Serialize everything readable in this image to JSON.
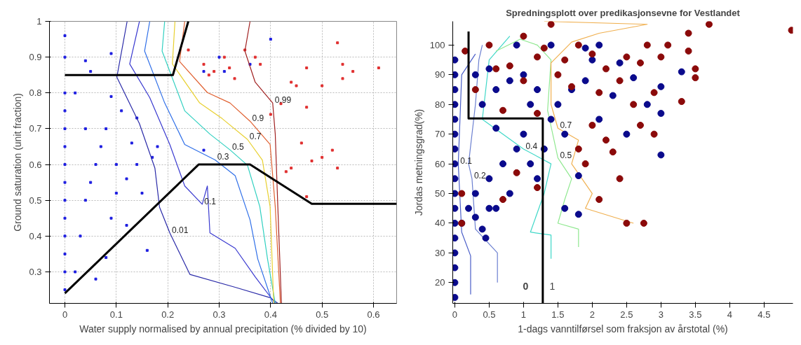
{
  "chart_data": [
    {
      "type": "scatter",
      "xlabel": "Water supply normalised by annual precipitation (% divided by 10)",
      "ylabel": "Ground saturation (unit fraction)",
      "xlim": [
        -0.03,
        0.645
      ],
      "ylim": [
        0.212,
        1
      ],
      "xticks": [
        0,
        0.1,
        0.2,
        0.3,
        0.4,
        0.5,
        0.6
      ],
      "yticks": [
        0.3,
        0.4,
        0.5,
        0.6,
        0.7,
        0.8,
        0.9,
        1
      ],
      "grid": true,
      "series": [
        {
          "marker": "square",
          "color": "#1f1fe0",
          "x": [
            0,
            0,
            0,
            0,
            0,
            0,
            0,
            0,
            0,
            0,
            0,
            0,
            0,
            0,
            0.02,
            0.03,
            0.04,
            0.05,
            0.06,
            0.04,
            0.02,
            0.05,
            0.08,
            0.09,
            0.1,
            0.1,
            0.08,
            0.11,
            0.12,
            0.13,
            0.14,
            0.15,
            0.16,
            0.12,
            0.14,
            0.17,
            0.18,
            0.06,
            0.04,
            0.09,
            0.27,
            0.3,
            0.31,
            0.36,
            0.4,
            0.27,
            0.09,
            0.07
          ],
          "values": [
            0.25,
            0.3,
            0.35,
            0.4,
            0.45,
            0.5,
            0.55,
            0.6,
            0.65,
            0.7,
            0.75,
            0.8,
            0.9,
            0.96,
            0.3,
            0.4,
            0.5,
            0.55,
            0.6,
            0.7,
            0.8,
            0.86,
            0.34,
            0.45,
            0.52,
            0.6,
            0.7,
            0.75,
            0.56,
            0.66,
            0.6,
            0.52,
            0.36,
            0.43,
            0.73,
            0.62,
            0.65,
            0.28,
            0.89,
            0.91,
            0.86,
            0.9,
            0.86,
            0.88,
            0.95,
            0.64,
            0.79,
            0.65
          ]
        },
        {
          "marker": "square",
          "color": "#e03030",
          "x": [
            0.24,
            0.27,
            0.28,
            0.29,
            0.31,
            0.33,
            0.35,
            0.38,
            0.44,
            0.45,
            0.47,
            0.5,
            0.53,
            0.54,
            0.56,
            0.54,
            0.61,
            0.42,
            0.47,
            0.48,
            0.5,
            0.52,
            0.44,
            0.46,
            0.47,
            0.53,
            0.4,
            0.43,
            0.37,
            0.32
          ],
          "values": [
            0.92,
            0.88,
            0.85,
            0.86,
            0.9,
            0.84,
            0.92,
            0.88,
            0.83,
            0.82,
            0.87,
            0.82,
            0.94,
            0.88,
            0.86,
            0.84,
            0.87,
            0.77,
            0.76,
            0.61,
            0.62,
            0.64,
            0.59,
            0.66,
            0.51,
            0.59,
            0.74,
            0.58,
            0.9,
            0.87
          ]
        },
        {
          "type": "line",
          "name": "0.01",
          "color": "#2a2aa8",
          "x": [
            0.121,
            0.101,
            0.145,
            0.175,
            0.184,
            0.204,
            0.243,
            0.331,
            0.399,
            0.414
          ],
          "values": [
            1.0,
            0.844,
            0.714,
            0.59,
            0.481,
            0.409,
            0.293,
            0.257,
            0.228,
            0.212
          ]
        },
        {
          "type": "line",
          "name": "0.1",
          "color": "#3a3ad0",
          "x": [
            0.145,
            0.126,
            0.165,
            0.204,
            0.233,
            0.267,
            0.277,
            0.282,
            0.331,
            0.37,
            0.409
          ],
          "values": [
            1.0,
            0.881,
            0.787,
            0.656,
            0.54,
            0.489,
            0.54,
            0.409,
            0.366,
            0.286,
            0.212
          ]
        },
        {
          "type": "line",
          "name": "0.3",
          "color": "#2f6fe8",
          "x": [
            0.165,
            0.155,
            0.194,
            0.233,
            0.292,
            0.331,
            0.36,
            0.375,
            0.404
          ],
          "values": [
            1.0,
            0.917,
            0.772,
            0.656,
            0.613,
            0.569,
            0.445,
            0.336,
            0.212
          ]
        },
        {
          "type": "line",
          "name": "0.5",
          "color": "#30d0c0",
          "x": [
            0.194,
            0.189,
            0.233,
            0.282,
            0.321,
            0.355,
            0.379,
            0.394,
            0.409
          ],
          "values": [
            1.0,
            0.917,
            0.75,
            0.685,
            0.641,
            0.598,
            0.482,
            0.336,
            0.212
          ]
        },
        {
          "type": "line",
          "name": "0.7",
          "color": "#e8d030",
          "x": [
            0.214,
            0.209,
            0.262,
            0.306,
            0.355,
            0.384,
            0.399,
            0.406
          ],
          "values": [
            1.0,
            0.881,
            0.772,
            0.728,
            0.67,
            0.612,
            0.482,
            0.212
          ]
        },
        {
          "type": "line",
          "name": "0.9",
          "color": "#e06030",
          "x": [
            0.233,
            0.223,
            0.277,
            0.321,
            0.36,
            0.399,
            0.409,
            0.419
          ],
          "values": [
            1.0,
            0.888,
            0.801,
            0.772,
            0.721,
            0.656,
            0.482,
            0.212
          ]
        },
        {
          "type": "line",
          "name": "0.99",
          "color": "#a02020",
          "x": [
            0.36,
            0.35,
            0.37,
            0.404,
            0.409,
            0.414,
            0.421
          ],
          "values": [
            1.0,
            0.917,
            0.83,
            0.772,
            0.685,
            0.482,
            0.212
          ]
        },
        {
          "type": "line",
          "color": "#000000",
          "x": [
            0,
            0.21,
            0.24
          ],
          "values": [
            0.85,
            0.85,
            1.0
          ]
        },
        {
          "type": "line",
          "color": "#000000",
          "x": [
            0,
            0.26,
            0.36,
            0.48,
            0.645
          ],
          "values": [
            0.24,
            0.6,
            0.6,
            0.49,
            0.49
          ]
        }
      ]
    },
    {
      "type": "scatter",
      "title": "Spredningsplott over predikasjonsevne for Vestlandet",
      "xlabel": "1-dags vanntilførsel som fraksjon av årstotal (%)",
      "ylabel": "Jordas metningsgrad(%)",
      "xlim": [
        -0.03,
        4.92
      ],
      "ylim": [
        13,
        108
      ],
      "xticks": [
        0,
        0.5,
        1,
        1.5,
        2,
        2.5,
        3,
        3.5,
        4,
        4.5
      ],
      "yticks": [
        20,
        30,
        40,
        50,
        60,
        70,
        80,
        90,
        100
      ],
      "annotations": [
        "0",
        "1"
      ],
      "series": [
        {
          "type": "line",
          "name": "0.1",
          "color": "#4a5ec8",
          "x": [
            0.23,
            0.23,
            0.1,
            0.05,
            0.1,
            0.3
          ],
          "values": [
            16,
            29,
            37,
            60,
            90,
            97
          ]
        },
        {
          "type": "line",
          "name": "0.2",
          "color": "#6b7fd0",
          "x": [
            0.62,
            0.62,
            0.5,
            0.3,
            0.25,
            0.2,
            0.3,
            0.35,
            0.4
          ],
          "values": [
            20,
            30,
            33,
            38,
            55,
            60,
            80,
            95,
            100
          ]
        },
        {
          "type": "line",
          "name": "0.4",
          "color": "#40d8c8",
          "x": [
            1.4,
            1.4,
            1.1,
            1.3,
            1.4,
            1.0,
            0.7,
            0.4,
            0.5,
            0.8
          ],
          "values": [
            28,
            36,
            37,
            50,
            60,
            65,
            70,
            75,
            95,
            103
          ]
        },
        {
          "type": "line",
          "name": "0.5",
          "color": "#90e890",
          "x": [
            1.8,
            1.8,
            1.5,
            1.6,
            1.7,
            1.5,
            1.35,
            1.4,
            1.2,
            0.95,
            0.6
          ],
          "values": [
            32,
            38,
            40,
            48,
            55,
            62,
            78,
            95,
            100,
            102,
            98
          ]
        },
        {
          "type": "line",
          "name": "0.7",
          "color": "#f0b050",
          "x": [
            1.3,
            2.8,
            2.1,
            1.7,
            1.4,
            1.4,
            1.5,
            1.8,
            1.7,
            2.0,
            1.9,
            2.6
          ],
          "values": [
            108,
            107,
            104,
            101,
            94,
            80,
            72,
            68,
            60,
            50,
            45,
            40
          ]
        },
        {
          "marker": "circle",
          "color": "#0a0a8c",
          "x": [
            0,
            0,
            0,
            0,
            0,
            0,
            0,
            0,
            0,
            0,
            0,
            0,
            0,
            0,
            0,
            0,
            0,
            0.1,
            0.2,
            0.3,
            0.45,
            0.4,
            0.5,
            0.6,
            0.3,
            0.5,
            0.7,
            0.8,
            0.9,
            1.0,
            0.6,
            0.4,
            0.6,
            0.8,
            1.0,
            1.2,
            1.1,
            0.3,
            0.5,
            0.9,
            1.1,
            1.2,
            1.3,
            1.4,
            1.5,
            1.6,
            1.7,
            1.9,
            2.0,
            2.3,
            2.4,
            2.6,
            2.8,
            3.0,
            3.0,
            3.3,
            3.0,
            1.8,
            1.6,
            1.8,
            1.4,
            2.1,
            1.9,
            2.5,
            2.1
          ],
          "values": [
            15,
            20,
            25,
            30,
            35,
            40,
            45,
            50,
            55,
            60,
            65,
            70,
            75,
            80,
            85,
            90,
            95,
            40,
            45,
            42,
            35,
            38,
            45,
            45,
            50,
            55,
            60,
            50,
            65,
            70,
            72,
            80,
            85,
            88,
            90,
            85,
            80,
            90,
            92,
            100,
            60,
            55,
            65,
            75,
            80,
            70,
            85,
            88,
            95,
            83,
            94,
            89,
            80,
            77,
            86,
            91,
            63,
            56,
            45,
            43,
            100,
            100,
            99,
            70,
            75
          ]
        },
        {
          "marker": "circle",
          "color": "#8b0a0a",
          "x": [
            0.1,
            0.1,
            0.15,
            0.5,
            0.6,
            0.8,
            1.0,
            1.0,
            1.2,
            1.4,
            1.3,
            1.5,
            1.6,
            1.7,
            1.8,
            2.0,
            2.1,
            2.2,
            2.4,
            2.5,
            2.6,
            2.7,
            2.8,
            2.9,
            3.0,
            3.1,
            3.4,
            3.4,
            3.5,
            3.5,
            3.3,
            3.7,
            4.9,
            2.0,
            2.2,
            2.3,
            2.4,
            2.1,
            1.9,
            1.8,
            2.5,
            2.75,
            2.7,
            2.9,
            1.2,
            0.9,
            0.7,
            1.2,
            0.3,
            0.7
          ],
          "values": [
            40,
            50,
            98,
            100,
            92,
            93,
            103,
            88,
            96,
            107,
            99,
            90,
            95,
            86,
            100,
            97,
            84,
            92,
            88,
            96,
            80,
            94,
            100,
            84,
            96,
            100,
            104,
            98,
            92,
            89,
            81,
            107,
            105,
            73,
            68,
            64,
            55,
            48,
            60,
            65,
            40,
            40,
            73,
            70,
            77,
            57,
            48,
            52,
            85,
            78
          ]
        },
        {
          "type": "line",
          "color": "#000000",
          "x": [
            0.2,
            0.2,
            1.28,
            1.28
          ],
          "values": [
            104.6,
            75.3,
            75.3,
            13
          ]
        }
      ]
    }
  ]
}
